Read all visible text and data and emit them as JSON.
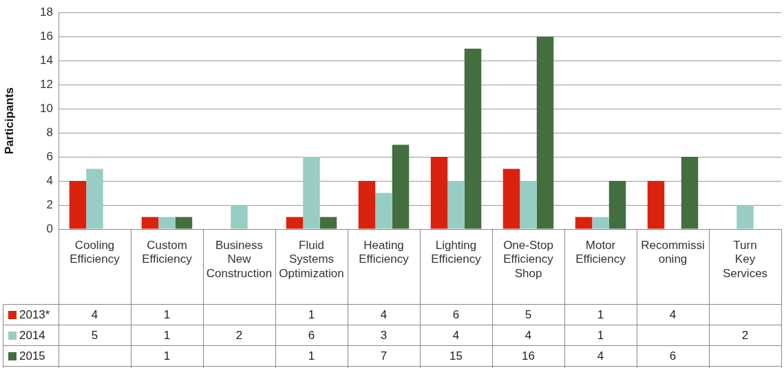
{
  "chart_data": {
    "type": "bar",
    "ylabel": "Participants",
    "categories": [
      "Cooling Efficiency",
      "Custom Efficiency",
      "Business New Construction",
      "Fluid Systems Optimization",
      "Heating Efficiency",
      "Lighting Efficiency",
      "One-Stop Efficiency Shop",
      "Motor Efficiency",
      "Recommissioning",
      "Turn Key Services"
    ],
    "series": [
      {
        "name": "2013*",
        "color": "#d9230f",
        "values": [
          4,
          1,
          null,
          1,
          4,
          6,
          5,
          1,
          4,
          null
        ]
      },
      {
        "name": "2014",
        "color": "#97cdc5",
        "values": [
          5,
          1,
          2,
          6,
          3,
          4,
          4,
          1,
          null,
          2
        ]
      },
      {
        "name": "2015",
        "color": "#436e3f",
        "values": [
          null,
          1,
          null,
          1,
          7,
          15,
          16,
          4,
          6,
          null
        ]
      }
    ],
    "ylim": [
      0,
      18
    ],
    "yticks": [
      0,
      2,
      4,
      6,
      8,
      10,
      12,
      14,
      16,
      18
    ],
    "grid": "y",
    "legend": "bottom",
    "data_labels": true
  }
}
